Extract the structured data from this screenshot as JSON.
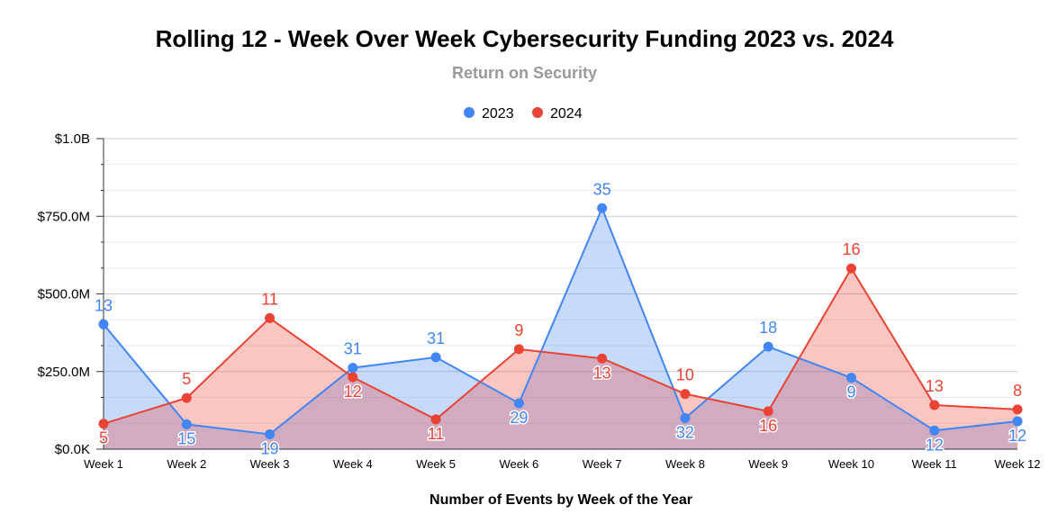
{
  "chart_data": {
    "type": "area",
    "title": "Rolling 12 - Week Over Week Cybersecurity Funding 2023 vs. 2024",
    "subtitle": "Return on Security",
    "xlabel": "Number of Events by Week of the Year",
    "ylabel": "",
    "ylim": [
      0,
      1000
    ],
    "y_unit": "$M",
    "yticks": [
      {
        "value": 0,
        "label": "$0.0K"
      },
      {
        "value": 250,
        "label": "$250.0M"
      },
      {
        "value": 500,
        "label": "$500.0M"
      },
      {
        "value": 750,
        "label": "$750.0M"
      },
      {
        "value": 1000,
        "label": "$1.0B"
      }
    ],
    "categories": [
      "Week 1",
      "Week 2",
      "Week 3",
      "Week 4",
      "Week 5",
      "Week 6",
      "Week 7",
      "Week 8",
      "Week 9",
      "Week 10",
      "Week 11",
      "Week 12"
    ],
    "legend_position": "top-center",
    "series": [
      {
        "name": "2023",
        "color": "#4285F4",
        "fill": "#C5D8F7",
        "values": [
          402,
          80,
          48,
          262,
          296,
          148,
          776,
          100,
          330,
          230,
          60,
          90
        ],
        "labels": [
          "13",
          "15",
          "19",
          "31",
          "31",
          "29",
          "35",
          "32",
          "18",
          "9",
          "12",
          "12"
        ]
      },
      {
        "name": "2024",
        "color": "#EA4335",
        "fill": "#F7C4C0",
        "values": [
          82,
          165,
          422,
          232,
          96,
          322,
          292,
          178,
          122,
          582,
          142,
          128
        ],
        "labels": [
          "5",
          "5",
          "11",
          "12",
          "11",
          "9",
          "13",
          "10",
          "16",
          "16",
          "13",
          "8"
        ]
      }
    ]
  }
}
